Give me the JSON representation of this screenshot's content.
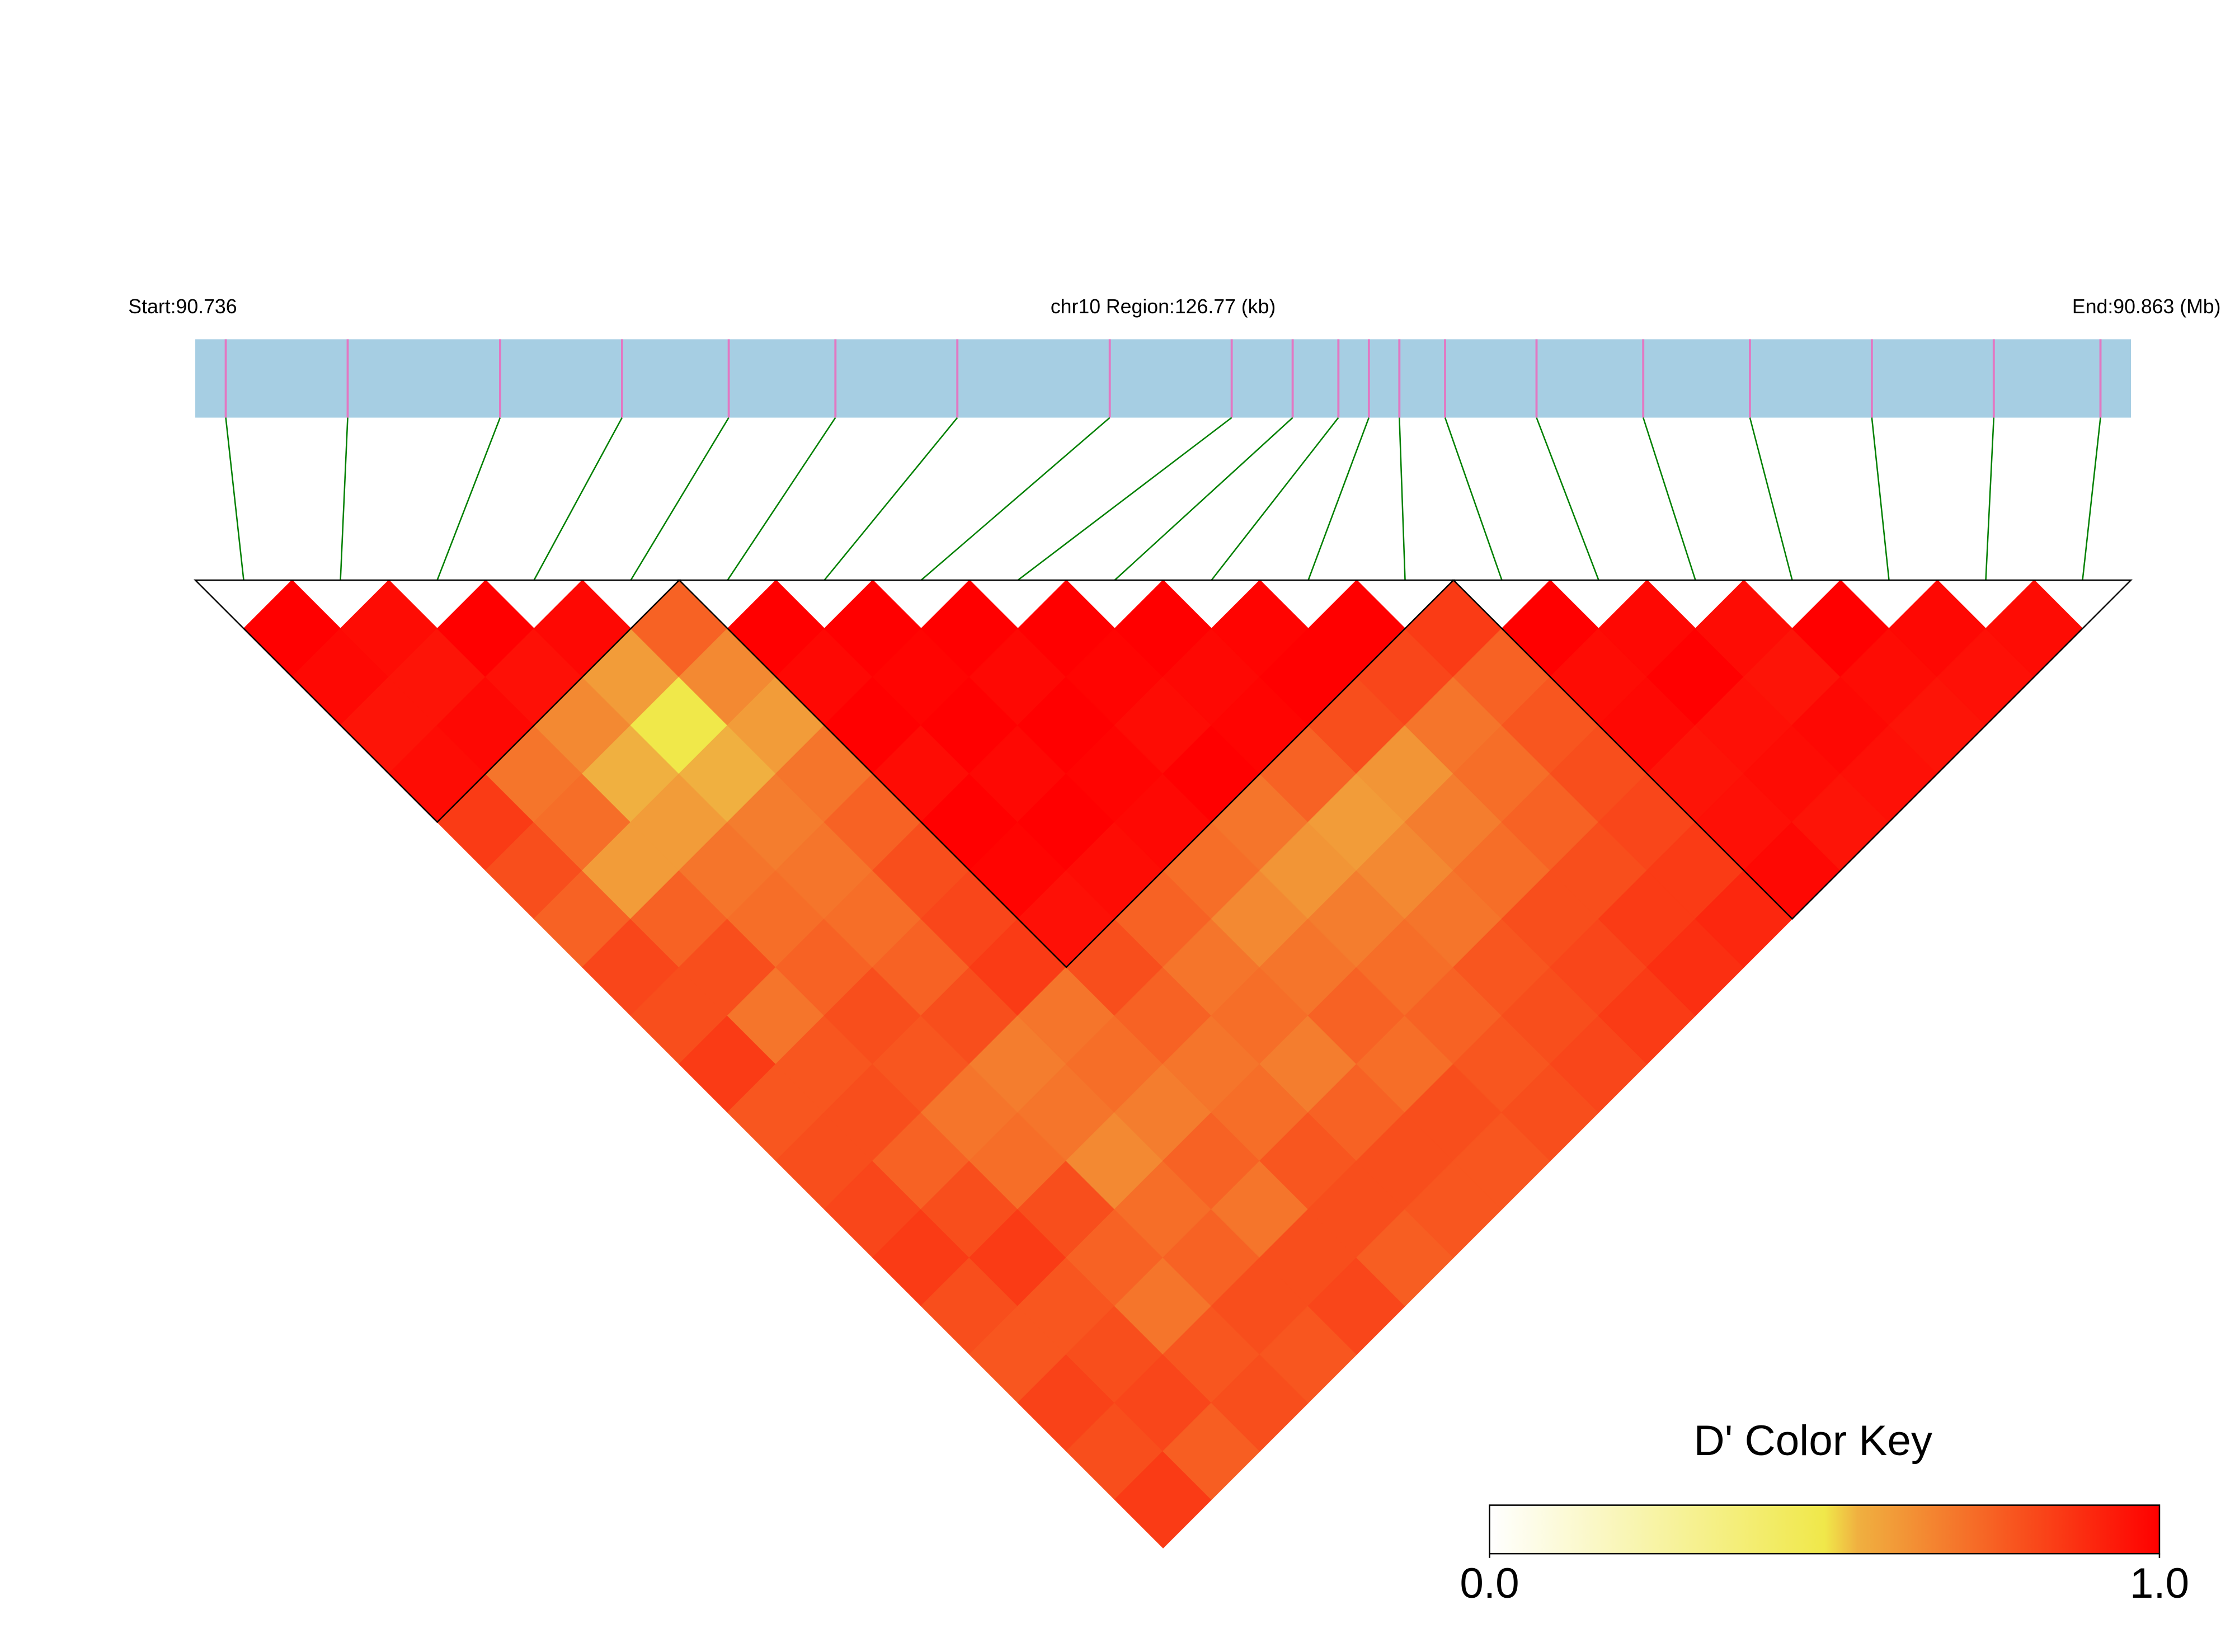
{
  "chart_data": {
    "type": "heatmap",
    "start_label": "Start:90.736",
    "region_label": "chr10 Region:126.77 (kb)",
    "end_label": "End:90.863 (Mb)",
    "xlim": [
      90.736,
      90.863
    ],
    "snp_positions": [
      90.738,
      90.746,
      90.756,
      90.764,
      90.771,
      90.778,
      90.786,
      90.796,
      90.804,
      90.808,
      90.811,
      90.813,
      90.815,
      90.818,
      90.824,
      90.831,
      90.838,
      90.846,
      90.854,
      90.861
    ],
    "dprime": [
      [
        1,
        0.98,
        0.95,
        0.97,
        0.85,
        0.8,
        0.75,
        0.82,
        0.8,
        0.85,
        0.78,
        0.8,
        0.82,
        0.85,
        0.8,
        0.78,
        0.83,
        0.8,
        0.85
      ],
      [
        0.97,
        0.95,
        0.98,
        0.7,
        0.72,
        0.6,
        0.75,
        0.8,
        0.7,
        0.78,
        0.8,
        0.75,
        0.8,
        0.85,
        0.78,
        0.8,
        0.82,
        0.76
      ],
      [
        1,
        0.96,
        0.65,
        0.55,
        0.6,
        0.7,
        0.72,
        0.75,
        0.8,
        0.78,
        0.7,
        0.72,
        0.8,
        0.75,
        0.7,
        0.78,
        0.8
      ],
      [
        0.98,
        0.6,
        0.5,
        0.55,
        0.68,
        0.7,
        0.72,
        0.75,
        0.8,
        0.68,
        0.7,
        0.65,
        0.72,
        0.75,
        0.8,
        0.78
      ],
      [
        0.75,
        0.65,
        0.6,
        0.7,
        0.75,
        0.8,
        0.82,
        0.85,
        0.7,
        0.72,
        0.68,
        0.75,
        0.7,
        0.8,
        0.82
      ],
      [
        1,
        0.98,
        1,
        0.97,
        1,
        0.99,
        0.96,
        0.8,
        0.75,
        0.7,
        0.72,
        0.78,
        0.8,
        0.76
      ],
      [
        1,
        0.99,
        1,
        0.98,
        1,
        0.97,
        0.75,
        0.7,
        0.72,
        0.68,
        0.75,
        0.8,
        0.78
      ],
      [
        1,
        0.98,
        1,
        0.99,
        0.98,
        0.72,
        0.65,
        0.7,
        0.75,
        0.72,
        0.8,
        0.78
      ],
      [
        1,
        0.99,
        0.97,
        1,
        0.7,
        0.62,
        0.68,
        0.72,
        0.75,
        0.78,
        0.8
      ],
      [
        1,
        0.98,
        0.99,
        0.75,
        0.6,
        0.65,
        0.7,
        0.78,
        0.8,
        0.82
      ],
      [
        0.99,
        1,
        0.8,
        0.62,
        0.68,
        0.72,
        0.8,
        0.82,
        0.85
      ],
      [
        1,
        0.82,
        0.7,
        0.72,
        0.75,
        0.8,
        0.85,
        0.88
      ],
      [
        0.85,
        0.75,
        0.78,
        0.8,
        0.82,
        0.85,
        0.9
      ],
      [
        1,
        0.97,
        0.98,
        0.95,
        0.96,
        0.98
      ],
      [
        0.98,
        1,
        0.96,
        0.97,
        0.95
      ],
      [
        0.97,
        0.95,
        0.98,
        0.96
      ],
      [
        1,
        0.97,
        0.95
      ],
      [
        0.98,
        0.96
      ],
      [
        0.97
      ]
    ],
    "blocks": [
      [
        0,
        4
      ],
      [
        5,
        12
      ],
      [
        13,
        19
      ]
    ],
    "colorscale": [
      [
        0,
        "#ffffff"
      ],
      [
        0.5,
        "#f0e84a"
      ],
      [
        0.55,
        "#f0b040"
      ],
      [
        1,
        "#ff0000"
      ]
    ],
    "bar_color": "#a6cee3",
    "snp_color": "#e377c2",
    "link_color": "#008000",
    "colorkey_title": "D' Color Key",
    "colorkey_ticks": [
      {
        "value": 0,
        "label": "0.0"
      },
      {
        "value": 1,
        "label": "1.0"
      }
    ],
    "colorkey_lim": [
      0,
      1
    ]
  }
}
